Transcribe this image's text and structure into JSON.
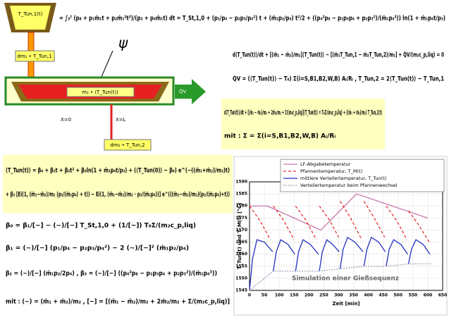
{
  "diagram": {
    "ladle_label": "T_Tun,1(t)",
    "inflow_label": "dm₁ • T_Tun,1",
    "psi": "ψ",
    "mass_label": "m₂ • ⟨T_Tun(t)⟩",
    "heat_label": "Q̇V",
    "x0_label": "X=0",
    "xl_label": "X=L",
    "outflow_label": "dm₂ • T_Tun,2"
  },
  "equations": {
    "top": "= ∫₀ᵗ (p₈ + p₁ṁ₁t + p₂ṁ₁²t²)/(p₃ + p₄ṁ₁t) dt = T_St,1,0 + (p₁/p₄ − p₂p₃/p₄²) t + (ṁ₁p₂/p₄) t²/2 + ((p₄²p₈ − p₁p₃p₄ + p₂p₃²)/(ṁ₁p₄³)) ln(1 + ṁ₁p₄t/p₃)",
    "balance": "d⟨T_Tun(t)⟩/dt + [(ṁ₁ − ṁ₂)/m₂]⟨T_Tun(t)⟩ − [(ṁ₁T_Tun,1 − ṁ₂T_Tun,2)/m₂] + Q̇V/(m₂c_p,liq) = 0",
    "heat": "Q̇V = (⟨T_Tun(t)⟩ − T₀) Σ(i=S,B1,B2,W,B) Aᵢ/Rᵢ ,    T_Tun,2 = 2⟨T_Tun(t)⟩ − T_Tun,1",
    "ode": "d⟨T_Tun(t)⟩/dt + [(ṁ₁ − ṁ₂)/m₂ + 2ṁ₂/m₂ + Σ/(m₂c_p,liq)]⟨T_Tun(t)⟩ = T₀Σ/(m₂c_p,liq) + ((ṁ₁ + ṁ₂)/m₂) T_Tun,1(t)",
    "sigma": "mit :  Σ = Σ(i=S,B1,B2,W,B) Aᵢ/Rᵢ",
    "solution_1": "⟨T_Tun(t)⟩ = β₀ + β₁t + β₂t² + β₃ln(1 + ṁ₁p₄t/p₃) + (⟨T_Tun(0)⟩ − β₀) e^(−((ṁ₁+ṁ₂)/m₂)t)",
    "solution_2": "+ β₃ [Ei(1, (ṁ₁−ṁ₂)/m₂ (p₃/(ṁ₁p₄) + t)) − Ei(1, (ṁ₁−ṁ₂)/m₂ · p₃/(ṁ₁p₄))] e^(((ṁ₁−ṁ₂)/m₂)(p₃/(ṁ₁p₄)+t))",
    "beta0": "β₀ = β₁/[−] − (~)/[−] T_St,1,0 + (1/[−]) T₀Σ/(m₂c_p,liq)",
    "beta1": "β₁ = (~)/[−] (p₁/p₄ − p₂p₃/p₄²) − 2 (~)/[−]² (ṁ₁p₂/p₄)",
    "beta23": "β₂ = (~)/[−] (ṁ₁p₂/2p₄) ,   β₃ = (~)/[−] ((p₄²p₈ − p₁p₃p₄ + p₂p₃²)/(ṁ₁p₄³))",
    "mit": "mit :  (~) = (ṁ₁ + ṁ₂)/m₂ ,   [−] = [(ṁ₁ − ṁ₂)/m₂ + 2ṁ₂/m₂ + Σ/(m₂c_p,liq)]"
  },
  "chart_data": {
    "type": "line",
    "annotation": "Simulation einer Gießsequenz",
    "xlabel": "Zeit [min]",
    "ylabel": "T_Tun(t)  und  T_M(t)  [°C]",
    "xlim": [
      0,
      650
    ],
    "xticks": [
      0,
      50,
      100,
      150,
      200,
      250,
      300,
      350,
      400,
      450,
      500,
      550,
      600,
      650
    ],
    "ylim": [
      1545,
      1590
    ],
    "yticks": [
      1545,
      1550,
      1555,
      1560,
      1565,
      1570,
      1575,
      1580,
      1585,
      1590
    ],
    "grid": true,
    "series": [
      {
        "name": "LF-Abgabetemperatur",
        "color": "#c87aa8",
        "dash": "solid",
        "x": [
          0,
          60,
          240,
          360,
          600
        ],
        "values": [
          1580,
          1580,
          1570,
          1585,
          1575
        ]
      },
      {
        "name": "Pfannentemperatur, T_M(t)",
        "color": "#e03030",
        "dash": "dashed",
        "x": [
          0,
          35,
          70,
          75,
          80,
          115,
          150,
          152,
          155,
          190,
          225,
          230,
          235,
          270,
          300,
          302,
          305,
          340,
          378,
          380,
          385,
          420,
          455,
          457,
          460,
          495,
          530,
          532,
          535,
          570,
          605
        ],
        "values": [
          1580,
          1574,
          1566,
          null,
          1580,
          1574,
          1566,
          null,
          1580,
          1574,
          1566,
          null,
          1580,
          1574,
          1567,
          null,
          1582,
          1575,
          1566,
          null,
          1582,
          1575,
          1567,
          null,
          1580,
          1574,
          1566,
          null,
          1578,
          1572,
          1565
        ]
      },
      {
        "name": "mittlere Verteilertemperatur, T_Tun(t)",
        "color": "#2030c0",
        "dash": "solid",
        "x": [
          0,
          10,
          25,
          50,
          78,
          79,
          80,
          90,
          105,
          130,
          152,
          153,
          155,
          165,
          180,
          205,
          232,
          233,
          235,
          245,
          260,
          280,
          302,
          303,
          305,
          315,
          330,
          355,
          382,
          383,
          385,
          395,
          410,
          435,
          457,
          458,
          460,
          470,
          485,
          510,
          532,
          533,
          535,
          545,
          560,
          585,
          607
        ],
        "values": [
          1545,
          1558,
          1566,
          1565,
          1561,
          null,
          1553,
          1561,
          1566,
          1564,
          1560,
          null,
          1553,
          1561,
          1566,
          1564,
          1560,
          null,
          1553,
          1561,
          1566,
          1564,
          1561,
          null,
          1554,
          1562,
          1567,
          1565,
          1561,
          null,
          1555,
          1562,
          1567,
          1565,
          1561,
          null,
          1555,
          1562,
          1566,
          1564,
          1560,
          null,
          1556,
          1562,
          1566,
          1564,
          1560
        ]
      },
      {
        "name": "Verteilertemperatur beim Pfannenwechsel",
        "color": "#8888aa",
        "dash": "dotted",
        "x": [
          0,
          80,
          155,
          235,
          305,
          385,
          460,
          535,
          610
        ],
        "values": [
          1545,
          1553,
          1553,
          1553,
          1554,
          1555,
          1555,
          1556,
          1556
        ]
      }
    ]
  }
}
